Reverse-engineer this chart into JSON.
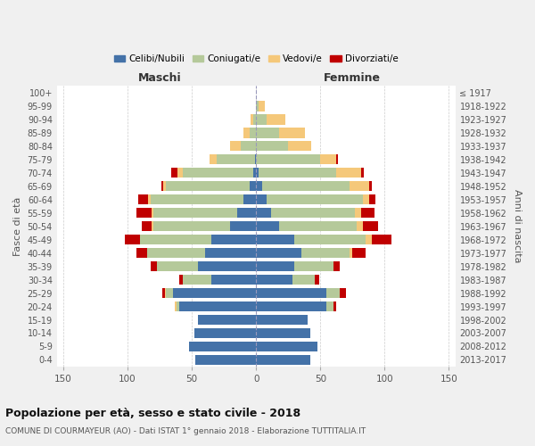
{
  "age_groups": [
    "0-4",
    "5-9",
    "10-14",
    "15-19",
    "20-24",
    "25-29",
    "30-34",
    "35-39",
    "40-44",
    "45-49",
    "50-54",
    "55-59",
    "60-64",
    "65-69",
    "70-74",
    "75-79",
    "80-84",
    "85-89",
    "90-94",
    "95-99",
    "100+"
  ],
  "birth_years": [
    "2013-2017",
    "2008-2012",
    "2003-2007",
    "1998-2002",
    "1993-1997",
    "1988-1992",
    "1983-1987",
    "1978-1982",
    "1973-1977",
    "1968-1972",
    "1963-1967",
    "1958-1962",
    "1953-1957",
    "1948-1952",
    "1943-1947",
    "1938-1942",
    "1933-1937",
    "1928-1932",
    "1923-1927",
    "1918-1922",
    "≤ 1917"
  ],
  "male_celibi": [
    47,
    52,
    48,
    45,
    60,
    65,
    35,
    45,
    40,
    35,
    20,
    15,
    10,
    5,
    2,
    1,
    0,
    0,
    0,
    0,
    0
  ],
  "male_coniugati": [
    0,
    0,
    0,
    0,
    2,
    5,
    22,
    32,
    45,
    55,
    60,
    65,
    72,
    65,
    55,
    30,
    12,
    5,
    2,
    0,
    0
  ],
  "male_vedovi": [
    0,
    0,
    0,
    0,
    1,
    1,
    0,
    0,
    0,
    0,
    1,
    1,
    2,
    2,
    4,
    5,
    8,
    5,
    2,
    0,
    0
  ],
  "male_divorziati": [
    0,
    0,
    0,
    0,
    0,
    2,
    3,
    5,
    8,
    12,
    8,
    12,
    8,
    2,
    5,
    0,
    0,
    0,
    0,
    0,
    0
  ],
  "female_nubili": [
    42,
    48,
    42,
    40,
    55,
    55,
    28,
    30,
    35,
    30,
    18,
    12,
    8,
    5,
    2,
    0,
    0,
    0,
    0,
    0,
    0
  ],
  "female_coniugate": [
    0,
    0,
    0,
    0,
    5,
    10,
    18,
    30,
    38,
    55,
    60,
    65,
    75,
    68,
    60,
    50,
    25,
    18,
    8,
    2,
    0
  ],
  "female_vedove": [
    0,
    0,
    0,
    0,
    0,
    0,
    0,
    0,
    2,
    5,
    5,
    5,
    5,
    15,
    20,
    12,
    18,
    20,
    15,
    5,
    0
  ],
  "female_divorziate": [
    0,
    0,
    0,
    0,
    2,
    5,
    3,
    5,
    10,
    15,
    12,
    10,
    5,
    2,
    2,
    2,
    0,
    0,
    0,
    0,
    0
  ],
  "colors": {
    "celibi": "#4472a8",
    "coniugati": "#b5c99a",
    "vedovi": "#f5c87a",
    "divorziati": "#c00000"
  },
  "legend_labels": [
    "Celibi/Nubili",
    "Coniugati/e",
    "Vedovi/e",
    "Divorziati/e"
  ],
  "xlim": 155,
  "title": "Popolazione per età, sesso e stato civile - 2018",
  "subtitle": "COMUNE DI COURMAYEUR (AO) - Dati ISTAT 1° gennaio 2018 - Elaborazione TUTTITALIA.IT",
  "xlabel_left": "Maschi",
  "xlabel_right": "Femmine",
  "ylabel_left": "Fasce di età",
  "ylabel_right": "Anni di nascita",
  "bg_color": "#f0f0f0",
  "plot_bg_color": "#ffffff"
}
